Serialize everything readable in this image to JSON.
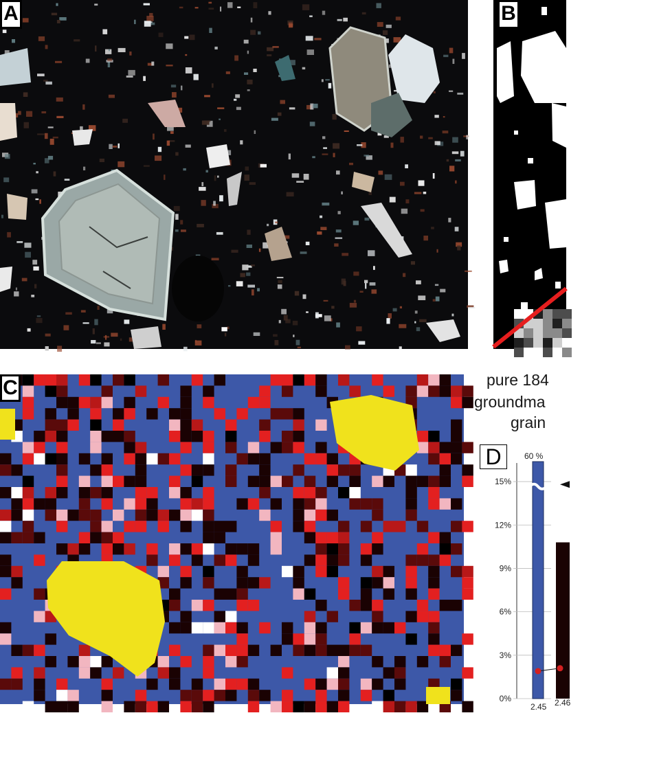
{
  "panels": {
    "a": {
      "letter": "A"
    },
    "b": {
      "letter": "B"
    },
    "c": {
      "letter": "C"
    },
    "d": {
      "letter": "D"
    }
  },
  "chart_data": {
    "type": "bar",
    "title_lines": [
      "pure 184",
      "groundma",
      "grain"
    ],
    "top_value_label": "60 %",
    "y_tick_labels": [
      "0%",
      "3%",
      "6%",
      "9%",
      "12%",
      "15%"
    ],
    "y_ticks": [
      0,
      3,
      6,
      9,
      12,
      15
    ],
    "ylim": [
      0,
      16
    ],
    "axis_break": true,
    "categories": [
      "2.45",
      "2.46"
    ],
    "values": [
      60,
      10.8
    ],
    "bar_colors": [
      "#3d58a8",
      "#1a0303"
    ],
    "line_points": [
      1.9,
      2.1
    ],
    "line_color": "#d42020"
  },
  "colors": {
    "thin_section_bg": "#0b0b0d",
    "binary_bg": "#000000",
    "map_bg": "#3d58a8",
    "map_hot": "#f0e21c",
    "map_red": "#e32020",
    "map_dark": "#1a0203",
    "map_pink": "#f2b6c0",
    "transect_line": "#e61e1e"
  }
}
